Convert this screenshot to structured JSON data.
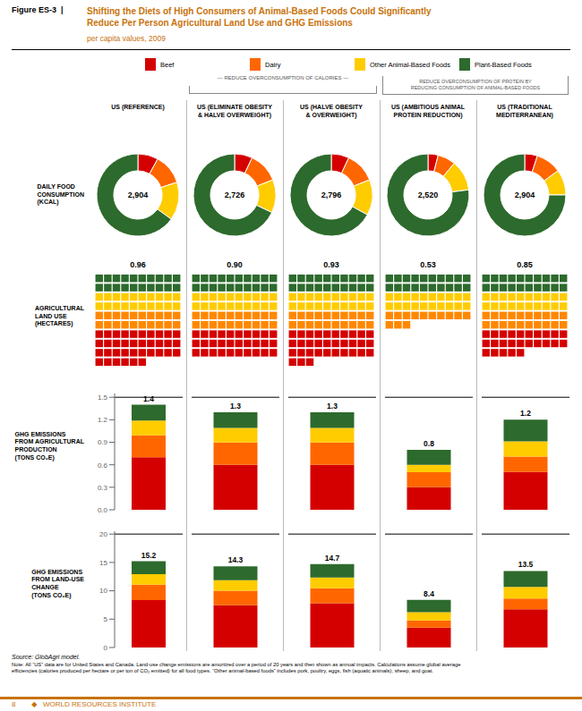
{
  "title": "Shifting the Diets of High Consumers of Animal-Based Foods Could Significantly\nReduce Per Person Agricultural Land Use and GHG Emissions",
  "subtitle": "per capita values, 2009",
  "color": "#c8720a",
  "annotations": {
    "figure_label": "Figure ES-3  |",
    "sections": [
      "— REDUCE OVERCONSUMPTION OF CALORIES —",
      "REDUCE OVERCONSUMPTION OF PROTEIN BY\nREDUCING CONSUMPTION OF ANIMAL-BASED FOODS"
    ],
    "source": "Source: GlobAgri model.",
    "note": "Note: All “US” data are for United States and Canada. Land-use change emissions are amortized over a period of 20 years and then shown as annual impacts. Calculations assume global average\nefficiencies (calories produced per hectare or per ton of CO₂ emitted) for all food types. “Other animal-based foods” includes pork, poultry, eggs, fish (aquatic animals), sheep, and goat.",
    "footer": "8        ◆   WORLD RESOURCES INSTITUTE"
  },
  "chart_data": [
    {
      "type": "pie",
      "title": "DAILY FOOD\nCONSUMPTION\n(KCAL)",
      "categories": [
        "US (REFERENCE)",
        "US (ELIMINATE OBESITY\n& HALVE OVERWEIGHT)",
        "US (HALVE OBESITY\n& OVERWEIGHT)",
        "US (AMBITIOUS ANIMAL\nPROTEIN REDUCTION)",
        "US (TRADITIONAL\nMEDITERRANEAN)"
      ],
      "legend": "top",
      "series": [
        {
          "name": "Beef",
          "color": "#d40000",
          "values": [
            0.08,
            0.07,
            0.07,
            0.04,
            0.05
          ]
        },
        {
          "name": "Dairy",
          "color": "#ff6600",
          "values": [
            0.12,
            0.12,
            0.12,
            0.07,
            0.1
          ]
        },
        {
          "name": "Other Animal-Based Foods",
          "color": "#ffcc00",
          "values": [
            0.15,
            0.13,
            0.14,
            0.12,
            0.1
          ]
        },
        {
          "name": "Plant-Based Foods",
          "color": "#2d6a2d",
          "values": [
            0.65,
            0.68,
            0.67,
            0.77,
            0.75
          ]
        }
      ],
      "totals": [
        {
          "value": 2904,
          "label": "2,904"
        },
        {
          "value": 2726,
          "label": "2,726"
        },
        {
          "value": 2796,
          "label": "2,796"
        },
        {
          "value": 2520,
          "label": "2,520"
        },
        {
          "value": 2904,
          "label": "2,904"
        }
      ]
    },
    {
      "type": "waffle",
      "title": "AGRICULTURAL\nLAND USE\n(HECTARES)",
      "categories": [
        "US (REFERENCE)",
        "US (ELIMINATE OBESITY\n& HALVE OVERWEIGHT)",
        "US (HALVE OBESITY\n& OVERWEIGHT)",
        "US (AMBITIOUS ANIMAL\nPROTEIN REDUCTION)",
        "US (TRADITIONAL\nMEDITERRANEAN)"
      ],
      "values": [
        0.96,
        0.9,
        0.93,
        0.53,
        0.85
      ],
      "value_labels": [
        "0.96",
        "0.90",
        "0.93",
        "0.53",
        "0.85"
      ],
      "data_labels": true,
      "colors": [
        "#2d6a2d",
        "#2d6a2d",
        "#ffcc00",
        "#ffcc00",
        "#ff8800",
        "#ff8800",
        "#d40000",
        "#d40000",
        "#d40000",
        "#d40000"
      ]
    },
    {
      "type": "bar",
      "stacked": true,
      "title": "GHG EMISSIONS\nFROM AGRICULTURAL\nPRODUCTION\n(TONS CO₂E)",
      "categories": [
        "US (REFERENCE)",
        "US (ELIMINATE OBESITY\n& HALVE OVERWEIGHT)",
        "US (HALVE OBESITY\n& OVERWEIGHT)",
        "US (AMBITIOUS ANIMAL\nPROTEIN REDUCTION)",
        "US (TRADITIONAL\nMEDITERRANEAN)"
      ],
      "series": [
        {
          "name": "Beef",
          "color": "#d40000",
          "values": [
            0.7,
            0.598,
            0.598,
            0.3,
            0.504
          ]
        },
        {
          "name": "Dairy",
          "color": "#ff6600",
          "values": [
            0.294,
            0.299,
            0.299,
            0.2,
            0.204
          ]
        },
        {
          "name": "Other Animal-Based Foods",
          "color": "#ffcc00",
          "values": [
            0.196,
            0.195,
            0.195,
            0.1,
            0.204
          ]
        },
        {
          "name": "Plant-Based Foods",
          "color": "#2d6a2d",
          "values": [
            0.21,
            0.208,
            0.208,
            0.2,
            0.288
          ]
        }
      ],
      "totals": [
        1.4,
        1.3,
        1.3,
        0.8,
        1.2
      ],
      "data_labels": true,
      "ylim": [
        0,
        1.55
      ],
      "yticks": [
        {
          "value": 0,
          "label": "0.0"
        },
        0.3,
        0.6,
        0.9,
        1.2,
        1.5
      ],
      "reference_line": 1.5,
      "grid": false,
      "tick_labels": "y"
    },
    {
      "type": "bar",
      "stacked": true,
      "title": "GHG EMISSIONS\nFROM LAND-USE\nCHANGE\n(TONS CO₂E)",
      "categories": [
        "US (REFERENCE)",
        "US (ELIMINATE OBESITY\n& HALVE OVERWEIGHT)",
        "US (HALVE OBESITY\n& OVERWEIGHT)",
        "US (AMBITIOUS ANIMAL\nPROTEIN REDUCTION)",
        "US (TRADITIONAL\nMEDITERRANEAN)"
      ],
      "series": [
        {
          "name": "Beef",
          "color": "#d40000",
          "values": [
            8.36,
            7.436,
            7.791,
            3.528,
            6.75
          ]
        },
        {
          "name": "Dairy",
          "color": "#ff6600",
          "values": [
            2.736,
            2.574,
            2.646,
            1.26,
            1.89
          ]
        },
        {
          "name": "Other Animal-Based Foods",
          "color": "#ffcc00",
          "values": [
            1.824,
            1.859,
            1.911,
            1.428,
            2.025
          ]
        },
        {
          "name": "Plant-Based Foods",
          "color": "#2d6a2d",
          "values": [
            2.28,
            2.431,
            2.352,
            2.184,
            2.835
          ]
        }
      ],
      "totals": [
        15.2,
        14.3,
        14.7,
        8.4,
        13.5
      ],
      "data_labels": true,
      "ylim": [
        0,
        20.5
      ],
      "yticks": [
        0,
        5,
        10,
        15,
        20
      ],
      "reference_line": 20,
      "grid": false,
      "tick_labels": "y"
    }
  ]
}
